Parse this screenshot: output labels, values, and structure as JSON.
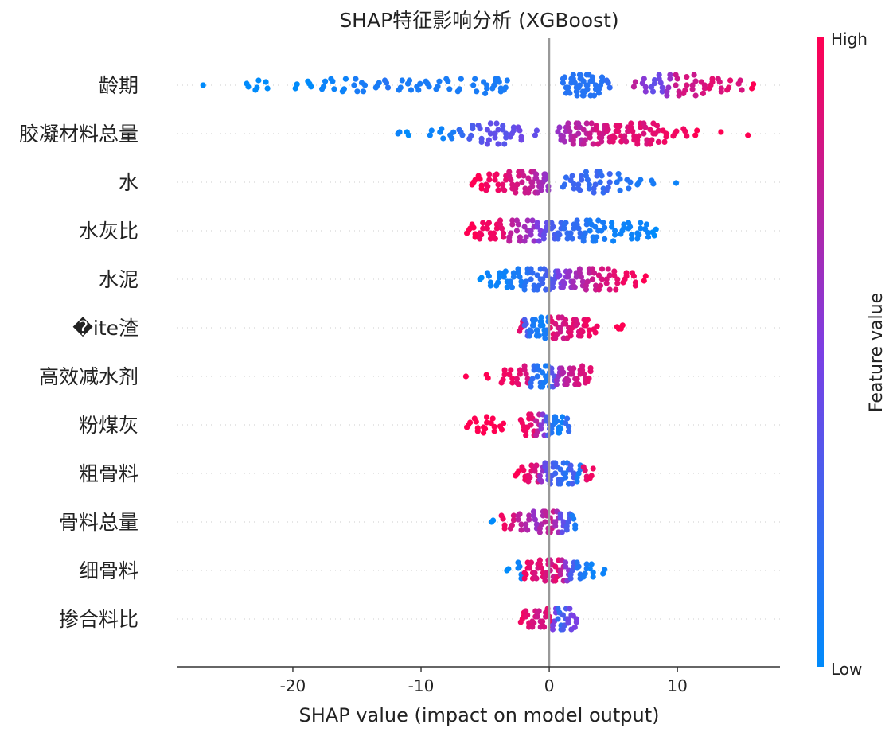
{
  "chart_data": {
    "type": "scatter",
    "title": "SHAP特征影响分析 (XGBoost)",
    "xlabel": "SHAP value (impact on model output)",
    "xlim": [
      -29,
      18
    ],
    "x_ticks": [
      -20,
      -10,
      0,
      10
    ],
    "x_tick_labels": [
      "-20",
      "-10",
      "0",
      "10"
    ],
    "grid": false,
    "colorbar": {
      "label": "Feature value",
      "high_label": "High",
      "low_label": "Low",
      "low_color": "#008bfb",
      "high_color": "#ff0052"
    },
    "features": [
      {
        "name": "龄期",
        "x": [
          -27.0,
          -23.6,
          -22.8,
          -22.1,
          -19.8,
          -18.7,
          -17.6,
          -16.9,
          -16.0,
          -15.1,
          -14.5,
          -13.4,
          -12.7,
          -11.6,
          -10.9,
          -10.2,
          -9.5,
          -8.7,
          -7.9,
          -7.0,
          -5.8,
          -5.0,
          -4.3,
          -3.9,
          -3.4,
          1.2,
          1.6,
          2.0,
          2.3,
          2.5,
          2.8,
          3.1,
          3.5,
          4.0,
          4.6,
          6.6,
          7.4,
          8.1,
          8.7,
          9.3,
          10.0,
          10.6,
          11.3,
          12.0,
          12.6,
          13.3,
          14.0,
          14.9,
          15.8
        ],
        "v": [
          0.0,
          0.0,
          0.0,
          0.0,
          0.0,
          0.0,
          0.05,
          0.05,
          0.05,
          0.1,
          0.1,
          0.1,
          0.15,
          0.1,
          0.1,
          0.1,
          0.1,
          0.1,
          0.1,
          0.1,
          0.1,
          0.1,
          0.1,
          0.1,
          0.1,
          0.15,
          0.15,
          0.15,
          0.15,
          0.15,
          0.15,
          0.15,
          0.15,
          0.15,
          0.2,
          0.75,
          0.55,
          0.4,
          0.45,
          0.6,
          0.8,
          0.85,
          0.8,
          0.85,
          0.9,
          0.85,
          0.9,
          0.85,
          1.0
        ]
      },
      {
        "name": "胶凝材料总量",
        "x": [
          -11.8,
          -11.1,
          -9.3,
          -8.4,
          -7.6,
          -6.9,
          -6.1,
          -5.4,
          -4.7,
          -4.1,
          -3.5,
          -2.9,
          -2.3,
          -1.1,
          0.8,
          1.2,
          1.6,
          2.0,
          2.4,
          2.8,
          3.3,
          3.8,
          4.2,
          4.6,
          5.1,
          5.5,
          6.0,
          6.5,
          7.0,
          7.5,
          8.0,
          8.4,
          9.0,
          9.8,
          10.6,
          11.4,
          13.4,
          15.5
        ],
        "v": [
          0.05,
          0.0,
          0.05,
          0.05,
          0.1,
          0.2,
          0.3,
          0.35,
          0.4,
          0.4,
          0.35,
          0.4,
          0.45,
          0.4,
          0.6,
          0.65,
          0.7,
          0.75,
          0.7,
          0.75,
          0.8,
          0.85,
          0.8,
          0.85,
          0.9,
          0.9,
          0.85,
          0.9,
          0.9,
          0.85,
          0.9,
          0.9,
          0.95,
          0.95,
          0.95,
          1.0,
          1.0,
          1.0
        ]
      },
      {
        "name": "水",
        "x": [
          -5.9,
          -5.4,
          -4.8,
          -4.1,
          -3.5,
          -3.0,
          -2.5,
          -2.0,
          -1.5,
          -1.2,
          -0.9,
          -0.5,
          -0.2,
          1.2,
          1.8,
          2.4,
          3.0,
          3.6,
          4.1,
          4.6,
          5.4,
          6.2,
          7.0,
          8.0,
          9.9
        ],
        "v": [
          1.0,
          1.0,
          0.95,
          0.95,
          0.9,
          0.85,
          0.85,
          0.8,
          0.8,
          0.75,
          0.7,
          0.65,
          0.6,
          0.2,
          0.25,
          0.25,
          0.2,
          0.25,
          0.2,
          0.25,
          0.15,
          0.15,
          0.1,
          0.1,
          0.05
        ]
      },
      {
        "name": "水灰比",
        "x": [
          -6.3,
          -5.9,
          -5.3,
          -4.7,
          -4.2,
          -3.7,
          -3.0,
          -2.4,
          -1.8,
          -1.3,
          -0.8,
          -0.3,
          0.3,
          0.8,
          1.3,
          1.8,
          2.3,
          2.8,
          3.3,
          3.7,
          4.2,
          5.0,
          5.7,
          6.3,
          7.0,
          7.6,
          8.2
        ],
        "v": [
          1.0,
          1.0,
          0.95,
          0.95,
          0.95,
          0.9,
          0.75,
          0.7,
          0.65,
          0.6,
          0.5,
          0.4,
          0.3,
          0.25,
          0.2,
          0.2,
          0.2,
          0.15,
          0.1,
          0.1,
          0.1,
          0.05,
          0.05,
          0.05,
          0.05,
          0.05,
          0.0
        ]
      },
      {
        "name": "水泥",
        "x": [
          -5.4,
          -4.7,
          -4.0,
          -3.4,
          -2.9,
          -2.3,
          -1.8,
          -1.3,
          -0.8,
          -0.4,
          0.0,
          0.4,
          0.8,
          1.2,
          1.6,
          2.0,
          2.5,
          3.0,
          3.5,
          4.0,
          4.6,
          5.2,
          5.9,
          6.6,
          7.4
        ],
        "v": [
          0.0,
          0.05,
          0.05,
          0.05,
          0.1,
          0.1,
          0.15,
          0.2,
          0.2,
          0.25,
          0.3,
          0.35,
          0.5,
          0.55,
          0.6,
          0.65,
          0.7,
          0.75,
          0.8,
          0.85,
          0.85,
          0.9,
          0.95,
          0.95,
          1.0
        ]
      },
      {
        "name": "�ite渣",
        "x": [
          -2.2,
          -1.8,
          -1.4,
          -1.1,
          -0.8,
          -0.5,
          -0.2,
          0.2,
          0.6,
          1.0,
          1.4,
          1.8,
          2.2,
          2.6,
          3.0,
          3.6,
          5.3,
          5.6
        ],
        "v": [
          0.9,
          0.3,
          0.15,
          0.1,
          0.1,
          0.05,
          0.1,
          0.9,
          0.85,
          0.8,
          0.85,
          0.9,
          0.85,
          0.9,
          0.95,
          0.95,
          1.0,
          1.0
        ]
      },
      {
        "name": "高效减水剂",
        "x": [
          -6.5,
          -4.9,
          -3.6,
          -3.0,
          -2.4,
          -1.8,
          -1.3,
          -0.8,
          -0.4,
          -0.1,
          0.3,
          0.7,
          1.1,
          1.5,
          1.9,
          2.3,
          2.7,
          3.1
        ],
        "v": [
          1.0,
          1.0,
          0.95,
          0.95,
          0.9,
          0.85,
          0.2,
          0.15,
          0.1,
          0.1,
          0.35,
          0.6,
          0.7,
          0.75,
          0.8,
          0.85,
          0.85,
          0.9
        ]
      },
      {
        "name": "粉煤灰",
        "x": [
          -6.3,
          -5.7,
          -5.0,
          -4.4,
          -3.7,
          -2.1,
          -1.7,
          -1.3,
          -0.9,
          -0.5,
          -0.1,
          0.3,
          0.6,
          0.9,
          1.4
        ],
        "v": [
          1.0,
          1.0,
          1.0,
          1.0,
          1.0,
          0.95,
          0.95,
          0.9,
          0.75,
          0.55,
          0.3,
          0.15,
          0.1,
          0.05,
          0.2
        ]
      },
      {
        "name": "粗骨料",
        "x": [
          -2.5,
          -2.0,
          -1.5,
          -1.0,
          -0.6,
          -0.2,
          0.2,
          0.6,
          1.0,
          1.4,
          1.8,
          2.3,
          2.8,
          3.3
        ],
        "v": [
          1.0,
          0.95,
          0.9,
          0.85,
          0.6,
          0.4,
          0.3,
          0.25,
          0.2,
          0.15,
          0.3,
          0.1,
          0.9,
          0.95
        ]
      },
      {
        "name": "骨料总量",
        "x": [
          -4.5,
          -3.6,
          -2.9,
          -2.3,
          -1.7,
          -1.1,
          -0.6,
          -0.2,
          0.2,
          0.6,
          1.0,
          1.5,
          1.9
        ],
        "v": [
          0.0,
          0.95,
          0.85,
          0.75,
          0.7,
          0.6,
          0.7,
          0.75,
          0.8,
          0.65,
          0.4,
          0.3,
          0.1
        ]
      },
      {
        "name": "细骨料",
        "x": [
          -3.3,
          -2.3,
          -1.8,
          -1.4,
          -1.0,
          -0.6,
          -0.2,
          0.2,
          0.6,
          1.0,
          1.4,
          1.8,
          2.3,
          2.8,
          3.3,
          4.2
        ],
        "v": [
          0.0,
          0.05,
          0.95,
          0.9,
          0.85,
          0.9,
          0.85,
          0.8,
          0.9,
          0.75,
          0.55,
          0.3,
          0.15,
          0.1,
          0.05,
          0.05
        ]
      },
      {
        "name": "掺合料比",
        "x": [
          -2.1,
          -1.7,
          -1.2,
          -0.8,
          -0.4,
          0.0,
          0.4,
          0.8,
          1.2,
          1.6,
          2.0
        ],
        "v": [
          0.95,
          0.9,
          0.85,
          0.8,
          0.85,
          0.9,
          0.5,
          0.2,
          0.3,
          0.45,
          0.5
        ]
      }
    ]
  }
}
